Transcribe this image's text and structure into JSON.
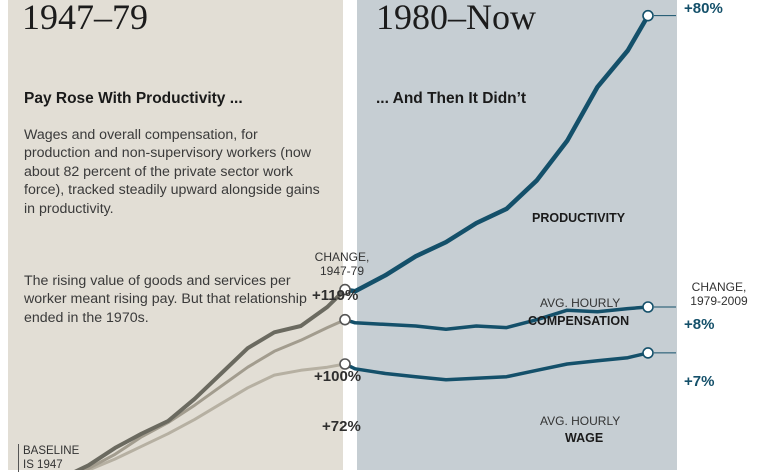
{
  "panels": {
    "left": {
      "era": "1947–79",
      "heading": "Pay Rose With Productivity ...",
      "paragraph1": "Wages and overall compensation, for production and non-supervisory workers (now about 82 percent of the private sector work force), tracked steadily upward alongside gains in productivity.",
      "paragraph2": "The rising value of goods and services per worker meant rising pay. But that relationship ended in the 1970s."
    },
    "right": {
      "era": "1980–Now",
      "heading": "... And Then It Didn’t"
    }
  },
  "labels": {
    "change_left": "CHANGE, 1947-79",
    "change_right": "CHANGE, 1979-2009",
    "productivity": "PRODUCTIVITY",
    "compensation_line1": "AVG. HOURLY",
    "compensation_line2": "COMPENSATION",
    "wage_line1": "AVG. HOURLY",
    "wage_line2": "WAGE",
    "baseline_line1": "BASELINE",
    "baseline_line2": "IS 1947"
  },
  "change_values": {
    "left": {
      "productivity": "+119%",
      "compensation": "+100%",
      "wage": "+72%"
    },
    "right": {
      "productivity": "+80%",
      "compensation": "+8%",
      "wage": "+7%"
    }
  },
  "colors": {
    "left_panel_bg": "#e2ded5",
    "right_panel_bg": "#c6ced3",
    "left_productivity": "#6b6a60",
    "left_compensation": "#a29c8e",
    "left_wage": "#b6b0a2",
    "right_lines": "#14506a"
  },
  "chart_data": {
    "type": "line",
    "x_unit": "year",
    "series": [
      {
        "name": "PRODUCTIVITY",
        "x": [
          1947,
          1950,
          1953,
          1956,
          1959,
          1962,
          1965,
          1968,
          1971,
          1974,
          1977,
          1979,
          1980,
          1983,
          1986,
          1989,
          1992,
          1995,
          1998,
          2001,
          2004,
          2007,
          2009
        ],
        "y": [
          0,
          8,
          19,
          28,
          36,
          50,
          66,
          82,
          92,
          96,
          108,
          119,
          118,
          128,
          140,
          149,
          161,
          170,
          188,
          213,
          247,
          270,
          292
        ]
      },
      {
        "name": "AVG. HOURLY COMPENSATION",
        "x": [
          1947,
          1950,
          1953,
          1956,
          1959,
          1962,
          1965,
          1968,
          1971,
          1974,
          1977,
          1979,
          1980,
          1983,
          1986,
          1989,
          1992,
          1995,
          1998,
          2001,
          2004,
          2007,
          2009
        ],
        "y": [
          0,
          6,
          15,
          26,
          35,
          46,
          58,
          70,
          80,
          87,
          95,
          100,
          98,
          97,
          96,
          94,
          96,
          95,
          100,
          106,
          105,
          107,
          108
        ]
      },
      {
        "name": "AVG. HOURLY WAGE",
        "x": [
          1947,
          1950,
          1953,
          1956,
          1959,
          1962,
          1965,
          1968,
          1971,
          1974,
          1977,
          1979,
          1980,
          1983,
          1986,
          1989,
          1992,
          1995,
          1998,
          2001,
          2004,
          2007,
          2009
        ],
        "y": [
          0,
          5,
          12,
          20,
          28,
          37,
          47,
          57,
          65,
          68,
          70,
          72,
          69,
          66,
          64,
          62,
          63,
          64,
          68,
          72,
          74,
          76,
          79
        ]
      }
    ],
    "ylim": [
      -10,
      300
    ],
    "divider_year": 1979
  }
}
